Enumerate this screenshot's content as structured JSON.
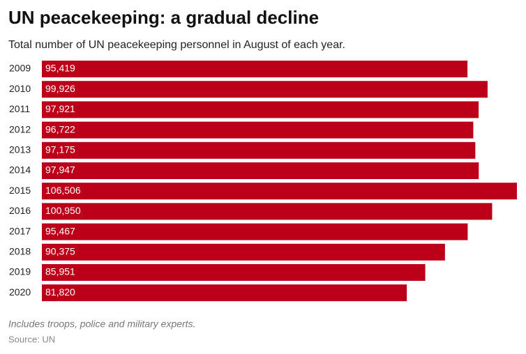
{
  "chart_data": {
    "type": "bar",
    "orientation": "horizontal",
    "title": "UN peacekeeping: a gradual decline",
    "subtitle": "Total number of UN peacekeeping personnel in August of each year.",
    "categories": [
      "2009",
      "2010",
      "2011",
      "2012",
      "2013",
      "2014",
      "2015",
      "2016",
      "2017",
      "2018",
      "2019",
      "2020"
    ],
    "values": [
      95419,
      99926,
      97921,
      96722,
      97175,
      97947,
      106506,
      100950,
      95467,
      90375,
      85951,
      81820
    ],
    "value_labels": [
      "95,419",
      "99,926",
      "97,921",
      "96,722",
      "97,175",
      "97,947",
      "106,506",
      "100,950",
      "95,467",
      "90,375",
      "85,951",
      "81,820"
    ],
    "color": "#bd0019",
    "note": "Includes troops, police and military experts.",
    "source": "Source: UN"
  }
}
